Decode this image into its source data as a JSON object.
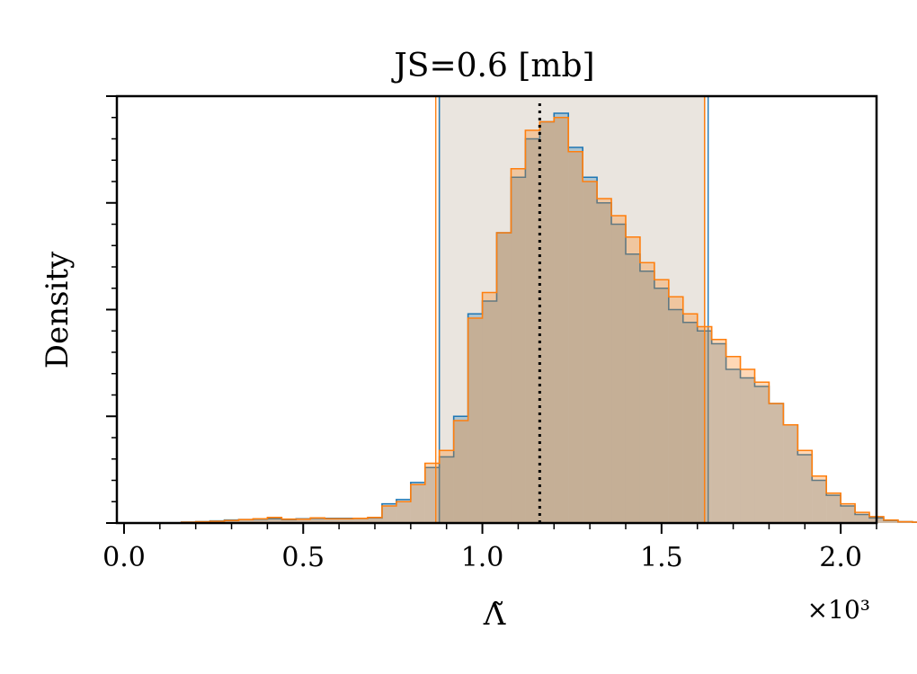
{
  "chart_data": {
    "type": "histogram",
    "title": "JS=0.6 [mb]",
    "xlabel": "Λ̃",
    "ylabel": "Density",
    "x_multiplier": "×10³",
    "x_ticks": [
      "0.0",
      "0.5",
      "1.0",
      "1.5",
      "2.0"
    ],
    "xlim": [
      -0.02,
      2.1
    ],
    "ylim": [
      0,
      1.0
    ],
    "bin_width": 0.04,
    "bin_start": 0.0,
    "median": 1.16,
    "credible_interval": [
      0.875,
      1.625
    ],
    "series": [
      {
        "color": "#1f77b4",
        "values": [
          0,
          0,
          0,
          0,
          0.002,
          0.003,
          0.005,
          0.007,
          0.008,
          0.009,
          0.01,
          0.008,
          0.01,
          0.011,
          0.011,
          0.011,
          0.011,
          0.012,
          0.045,
          0.055,
          0.095,
          0.13,
          0.155,
          0.25,
          0.49,
          0.52,
          0.68,
          0.81,
          0.9,
          0.94,
          0.96,
          0.88,
          0.81,
          0.75,
          0.7,
          0.63,
          0.59,
          0.55,
          0.5,
          0.47,
          0.45,
          0.42,
          0.36,
          0.34,
          0.32,
          0.28,
          0.23,
          0.16,
          0.1,
          0.065,
          0.04,
          0.02,
          0.012,
          0.006,
          0.003,
          0.002
        ]
      },
      {
        "color": "#ff7f0e",
        "values": [
          0,
          0,
          0,
          0,
          0.002,
          0.003,
          0.004,
          0.006,
          0.008,
          0.01,
          0.013,
          0.009,
          0.009,
          0.012,
          0.01,
          0.01,
          0.011,
          0.013,
          0.04,
          0.05,
          0.09,
          0.14,
          0.17,
          0.24,
          0.48,
          0.54,
          0.68,
          0.83,
          0.92,
          0.94,
          0.95,
          0.87,
          0.8,
          0.76,
          0.72,
          0.67,
          0.61,
          0.57,
          0.53,
          0.49,
          0.46,
          0.43,
          0.39,
          0.36,
          0.33,
          0.28,
          0.23,
          0.17,
          0.11,
          0.07,
          0.045,
          0.025,
          0.015,
          0.007,
          0.003,
          0.002
        ]
      }
    ],
    "colors": {
      "series_a": "#1f77b4",
      "series_b": "#ff7f0e",
      "median_line": "#000000",
      "interval_band": "#d9cfc4"
    },
    "grid": false,
    "legend": "none"
  }
}
